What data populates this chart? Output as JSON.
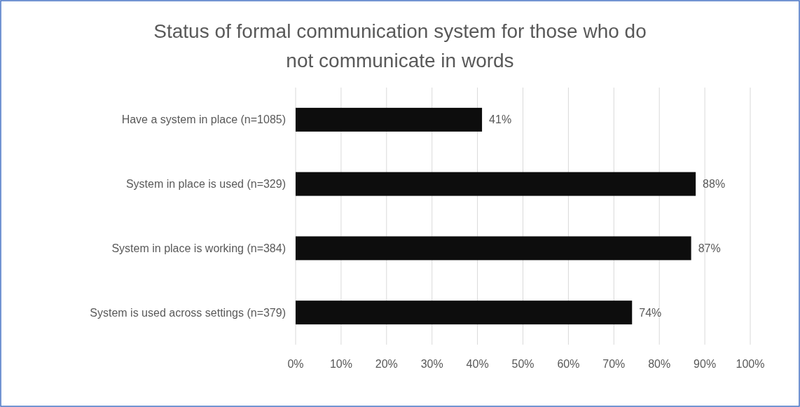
{
  "chart_data": {
    "type": "bar",
    "orientation": "horizontal",
    "title": "Status of formal communication system for those who do not communicate in words",
    "categories": [
      "Have a system in place (n=1085)",
      "System in place is used (n=329)",
      "System in place is working (n=384)",
      "System is used across settings (n=379)"
    ],
    "values": [
      41,
      88,
      87,
      74
    ],
    "value_labels": [
      "41%",
      "88%",
      "87%",
      "74%"
    ],
    "color": "#0d0d0d",
    "xlim": [
      0,
      100
    ],
    "xticks": [
      {
        "value": 0,
        "label": "0%"
      },
      {
        "value": 10,
        "label": "10%"
      },
      {
        "value": 20,
        "label": "20%"
      },
      {
        "value": 30,
        "label": "30%"
      },
      {
        "value": 40,
        "label": "40%"
      },
      {
        "value": 50,
        "label": "50%"
      },
      {
        "value": 60,
        "label": "60%"
      },
      {
        "value": 70,
        "label": "70%"
      },
      {
        "value": 80,
        "label": "80%"
      },
      {
        "value": 90,
        "label": "90%"
      },
      {
        "value": 100,
        "label": "100%"
      }
    ],
    "grid": "x"
  }
}
